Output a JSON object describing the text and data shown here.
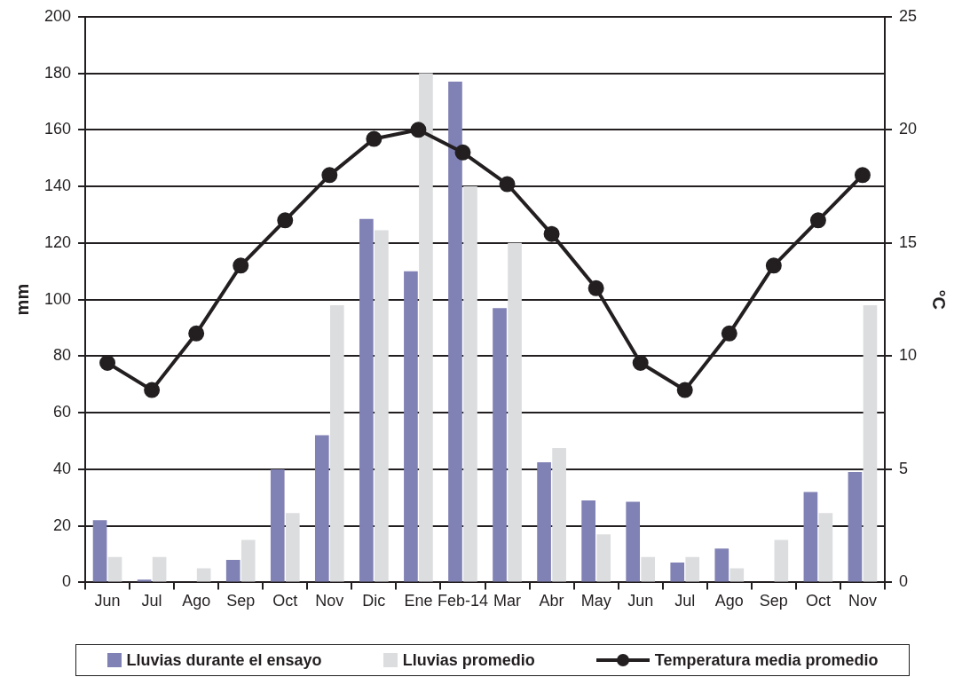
{
  "chart_data": {
    "type": "bar",
    "ylabel": "mm",
    "y2label": "°C",
    "categories": [
      "Jun",
      "Jul",
      "Ago",
      "Sep",
      "Oct",
      "Nov",
      "Dic",
      "Ene",
      "Feb-14",
      "Mar",
      "Abr",
      "May",
      "Jun",
      "Jul",
      "Ago",
      "Sep",
      "Oct",
      "Nov"
    ],
    "series": [
      {
        "name": "Lluvias durante el ensayo",
        "color": "#8081b4",
        "values": [
          22,
          1,
          0,
          8,
          40,
          52,
          128.5,
          110,
          177,
          97,
          42.5,
          29,
          28.5,
          7,
          12,
          0,
          32,
          39
        ]
      },
      {
        "name": "Lluvias promedio",
        "color": "#dcdddf",
        "values": [
          9,
          9,
          5,
          15,
          24.5,
          98,
          124.5,
          180,
          140,
          120,
          47.5,
          17,
          9,
          9,
          5,
          15,
          24.5,
          98
        ]
      },
      {
        "name": "Temperatura media promedio",
        "type": "line",
        "axis": "y2",
        "color": "#231f20",
        "values": [
          9.7,
          8.5,
          11,
          14,
          16,
          18,
          19.6,
          20,
          19,
          17.6,
          15.4,
          13,
          9.7,
          8.5,
          11,
          14,
          16,
          18
        ]
      }
    ],
    "ylim": [
      0,
      200
    ],
    "yticks": [
      0,
      20,
      40,
      60,
      80,
      100,
      120,
      140,
      160,
      180,
      200
    ],
    "y2lim": [
      0,
      25
    ],
    "y2ticks": [
      0,
      5,
      10,
      15,
      20,
      25
    ],
    "grid": "y",
    "legend": "bottom",
    "marker": "circle",
    "line_style": "solid"
  }
}
